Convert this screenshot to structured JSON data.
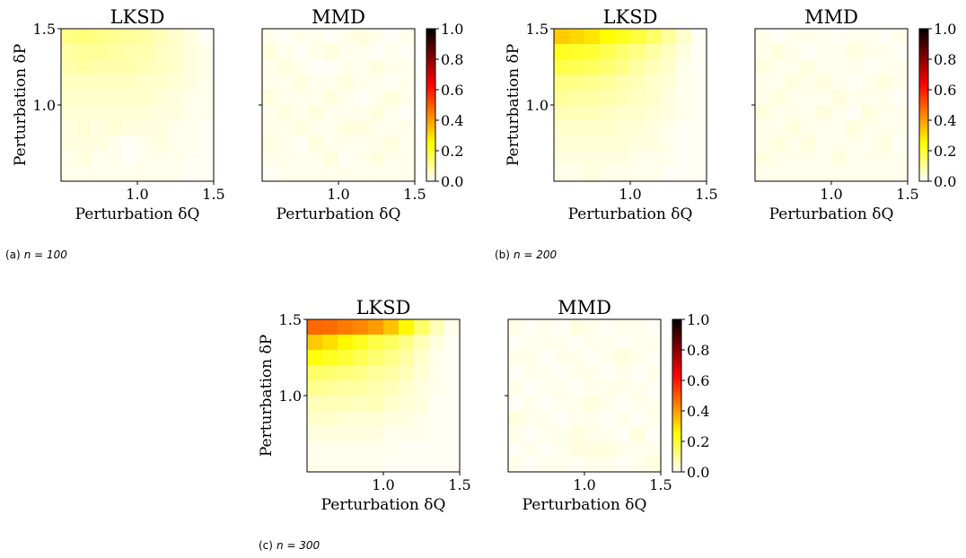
{
  "figure": {
    "captions": [
      {
        "label": "(a)",
        "n_value": "n = 100"
      },
      {
        "label": "(b)",
        "n_value": "n = 200"
      },
      {
        "label": "(c)",
        "n_value": "n = 300"
      }
    ],
    "axis_texts": {
      "xlabel": "Perturbation δQ",
      "ylabel": "Perturbation δP"
    }
  },
  "chart_data": [
    {
      "type": "heatmap",
      "title": "LKSD",
      "group": "(a)",
      "n": 100,
      "xlabel": "Perturbation δQ",
      "ylabel": "Perturbation δP",
      "xlim": [
        0.5,
        1.5
      ],
      "ylim": [
        0.5,
        1.5
      ],
      "xticks": [
        "1.0",
        "1.5"
      ],
      "yticks": [
        "1.0",
        "1.5"
      ],
      "colormap": "hot_r",
      "vmin": 0.0,
      "vmax": 1.0,
      "values": [
        [
          0.12,
          0.13,
          0.12,
          0.11,
          0.1,
          0.09,
          0.07,
          0.05,
          0.03,
          0.01
        ],
        [
          0.09,
          0.1,
          0.1,
          0.09,
          0.08,
          0.08,
          0.06,
          0.05,
          0.03,
          0.02
        ],
        [
          0.08,
          0.09,
          0.08,
          0.08,
          0.08,
          0.07,
          0.06,
          0.05,
          0.03,
          0.02
        ],
        [
          0.06,
          0.06,
          0.06,
          0.06,
          0.06,
          0.05,
          0.05,
          0.04,
          0.03,
          0.02
        ],
        [
          0.05,
          0.05,
          0.05,
          0.05,
          0.05,
          0.05,
          0.04,
          0.03,
          0.02,
          0.02
        ],
        [
          0.04,
          0.04,
          0.04,
          0.04,
          0.04,
          0.04,
          0.03,
          0.03,
          0.02,
          0.02
        ],
        [
          0.03,
          0.04,
          0.03,
          0.04,
          0.03,
          0.03,
          0.03,
          0.02,
          0.02,
          0.01
        ],
        [
          0.03,
          0.03,
          0.03,
          0.02,
          0.01,
          0.02,
          0.03,
          0.02,
          0.02,
          0.01
        ],
        [
          0.02,
          0.03,
          0.02,
          0.02,
          0.01,
          0.02,
          0.02,
          0.02,
          0.01,
          0.01
        ],
        [
          0.02,
          0.02,
          0.02,
          0.02,
          0.02,
          0.02,
          0.02,
          0.02,
          0.01,
          0.01
        ]
      ]
    },
    {
      "type": "heatmap",
      "title": "MMD",
      "group": "(a)",
      "n": 100,
      "xlabel": "Perturbation δQ",
      "ylabel": "",
      "xlim": [
        0.5,
        1.5
      ],
      "ylim": [
        0.5,
        1.5
      ],
      "xticks": [
        "1.0",
        "1.5"
      ],
      "yticks": [],
      "colormap": "hot_r",
      "vmin": 0.0,
      "vmax": 1.0,
      "colorbar_ticks": [
        "0.0",
        "0.2",
        "0.4",
        "0.6",
        "0.8",
        "1.0"
      ],
      "values": [
        [
          0.02,
          0.01,
          0.02,
          0.02,
          0.01,
          0.02,
          0.03,
          0.02,
          0.01,
          0.02
        ],
        [
          0.03,
          0.02,
          0.01,
          0.02,
          0.03,
          0.02,
          0.02,
          0.01,
          0.02,
          0.01
        ],
        [
          0.02,
          0.03,
          0.02,
          0.01,
          0.01,
          0.02,
          0.02,
          0.03,
          0.02,
          0.02
        ],
        [
          0.02,
          0.02,
          0.03,
          0.02,
          0.02,
          0.03,
          0.02,
          0.02,
          0.01,
          0.02
        ],
        [
          0.03,
          0.02,
          0.02,
          0.02,
          0.03,
          0.02,
          0.01,
          0.02,
          0.03,
          0.02
        ],
        [
          0.02,
          0.03,
          0.02,
          0.03,
          0.02,
          0.02,
          0.02,
          0.03,
          0.02,
          0.01
        ],
        [
          0.02,
          0.02,
          0.03,
          0.02,
          0.02,
          0.03,
          0.03,
          0.02,
          0.02,
          0.02
        ],
        [
          0.03,
          0.02,
          0.01,
          0.03,
          0.02,
          0.02,
          0.02,
          0.02,
          0.03,
          0.02
        ],
        [
          0.02,
          0.02,
          0.02,
          0.02,
          0.03,
          0.01,
          0.02,
          0.03,
          0.02,
          0.02
        ],
        [
          0.01,
          0.02,
          0.02,
          0.02,
          0.02,
          0.02,
          0.02,
          0.02,
          0.02,
          0.02
        ]
      ]
    },
    {
      "type": "heatmap",
      "title": "LKSD",
      "group": "(b)",
      "n": 200,
      "xlabel": "Perturbation δQ",
      "ylabel": "Perturbation δP",
      "xlim": [
        0.5,
        1.5
      ],
      "ylim": [
        0.5,
        1.5
      ],
      "xticks": [
        "1.0",
        "1.5"
      ],
      "yticks": [
        "1.0",
        "1.5"
      ],
      "colormap": "hot_r",
      "vmin": 0.0,
      "vmax": 1.0,
      "values": [
        [
          0.33,
          0.31,
          0.29,
          0.25,
          0.22,
          0.19,
          0.15,
          0.1,
          0.05,
          0.01
        ],
        [
          0.22,
          0.21,
          0.2,
          0.17,
          0.14,
          0.12,
          0.09,
          0.06,
          0.03,
          0.01
        ],
        [
          0.18,
          0.17,
          0.16,
          0.14,
          0.12,
          0.09,
          0.07,
          0.05,
          0.02,
          0.01
        ],
        [
          0.12,
          0.12,
          0.11,
          0.1,
          0.08,
          0.07,
          0.05,
          0.04,
          0.02,
          0.01
        ],
        [
          0.1,
          0.09,
          0.09,
          0.08,
          0.07,
          0.06,
          0.05,
          0.03,
          0.02,
          0.01
        ],
        [
          0.07,
          0.07,
          0.07,
          0.06,
          0.05,
          0.05,
          0.04,
          0.03,
          0.02,
          0.01
        ],
        [
          0.05,
          0.05,
          0.05,
          0.05,
          0.04,
          0.04,
          0.03,
          0.02,
          0.01,
          0.01
        ],
        [
          0.04,
          0.04,
          0.04,
          0.04,
          0.04,
          0.03,
          0.03,
          0.02,
          0.01,
          0.01
        ],
        [
          0.03,
          0.03,
          0.03,
          0.03,
          0.03,
          0.02,
          0.02,
          0.02,
          0.01,
          0.01
        ],
        [
          0.02,
          0.02,
          0.03,
          0.02,
          0.02,
          0.02,
          0.02,
          0.01,
          0.01,
          0.01
        ]
      ]
    },
    {
      "type": "heatmap",
      "title": "MMD",
      "group": "(b)",
      "n": 200,
      "xlabel": "Perturbation δQ",
      "ylabel": "",
      "xlim": [
        0.5,
        1.5
      ],
      "ylim": [
        0.5,
        1.5
      ],
      "xticks": [
        "1.0",
        "1.5"
      ],
      "yticks": [],
      "colormap": "hot_r",
      "vmin": 0.0,
      "vmax": 1.0,
      "colorbar_ticks": [
        "0.0",
        "0.2",
        "0.4",
        "0.6",
        "0.8",
        "1.0"
      ],
      "values": [
        [
          0.02,
          0.01,
          0.02,
          0.02,
          0.02,
          0.01,
          0.02,
          0.02,
          0.01,
          0.02
        ],
        [
          0.02,
          0.03,
          0.02,
          0.01,
          0.02,
          0.02,
          0.03,
          0.02,
          0.02,
          0.01
        ],
        [
          0.03,
          0.02,
          0.02,
          0.03,
          0.02,
          0.02,
          0.02,
          0.01,
          0.02,
          0.02
        ],
        [
          0.02,
          0.02,
          0.03,
          0.02,
          0.03,
          0.02,
          0.01,
          0.02,
          0.03,
          0.02
        ],
        [
          0.02,
          0.03,
          0.02,
          0.02,
          0.02,
          0.03,
          0.02,
          0.02,
          0.02,
          0.01
        ],
        [
          0.03,
          0.02,
          0.02,
          0.02,
          0.03,
          0.02,
          0.01,
          0.03,
          0.02,
          0.02
        ],
        [
          0.02,
          0.02,
          0.03,
          0.02,
          0.02,
          0.02,
          0.03,
          0.02,
          0.02,
          0.02
        ],
        [
          0.02,
          0.03,
          0.02,
          0.03,
          0.02,
          0.02,
          0.02,
          0.02,
          0.03,
          0.01
        ],
        [
          0.03,
          0.02,
          0.02,
          0.02,
          0.02,
          0.03,
          0.02,
          0.02,
          0.02,
          0.02
        ],
        [
          0.02,
          0.02,
          0.02,
          0.02,
          0.02,
          0.02,
          0.02,
          0.02,
          0.02,
          0.02
        ]
      ]
    },
    {
      "type": "heatmap",
      "title": "LKSD",
      "group": "(c)",
      "n": 300,
      "xlabel": "Perturbation δQ",
      "ylabel": "Perturbation δP",
      "xlim": [
        0.5,
        1.5
      ],
      "ylim": [
        0.5,
        1.5
      ],
      "xticks": [
        "1.0",
        "1.5"
      ],
      "yticks": [
        "1.0",
        "1.5"
      ],
      "colormap": "hot_r",
      "vmin": 0.0,
      "vmax": 1.0,
      "values": [
        [
          0.48,
          0.47,
          0.45,
          0.43,
          0.4,
          0.34,
          0.26,
          0.15,
          0.07,
          0.02
        ],
        [
          0.33,
          0.3,
          0.26,
          0.22,
          0.18,
          0.16,
          0.12,
          0.07,
          0.03,
          0.01
        ],
        [
          0.24,
          0.22,
          0.2,
          0.17,
          0.14,
          0.12,
          0.09,
          0.05,
          0.02,
          0.01
        ],
        [
          0.15,
          0.14,
          0.13,
          0.12,
          0.1,
          0.09,
          0.07,
          0.04,
          0.02,
          0.01
        ],
        [
          0.11,
          0.1,
          0.09,
          0.09,
          0.08,
          0.07,
          0.05,
          0.03,
          0.02,
          0.01
        ],
        [
          0.07,
          0.07,
          0.07,
          0.06,
          0.07,
          0.05,
          0.04,
          0.03,
          0.01,
          0.01
        ],
        [
          0.05,
          0.05,
          0.04,
          0.04,
          0.04,
          0.03,
          0.03,
          0.02,
          0.01,
          0.01
        ],
        [
          0.03,
          0.03,
          0.03,
          0.03,
          0.03,
          0.02,
          0.02,
          0.02,
          0.01,
          0.01
        ],
        [
          0.02,
          0.02,
          0.02,
          0.02,
          0.02,
          0.02,
          0.01,
          0.01,
          0.01,
          0.01
        ],
        [
          0.02,
          0.02,
          0.02,
          0.02,
          0.02,
          0.01,
          0.01,
          0.01,
          0.01,
          0.01
        ]
      ]
    },
    {
      "type": "heatmap",
      "title": "MMD",
      "group": "(c)",
      "n": 300,
      "xlabel": "Perturbation δQ",
      "ylabel": "",
      "xlim": [
        0.5,
        1.5
      ],
      "ylim": [
        0.5,
        1.5
      ],
      "xticks": [
        "1.0",
        "1.5"
      ],
      "yticks": [],
      "colormap": "hot_r",
      "vmin": 0.0,
      "vmax": 1.0,
      "colorbar_ticks": [
        "0.0",
        "0.2",
        "0.4",
        "0.6",
        "0.8",
        "1.0"
      ],
      "values": [
        [
          0.02,
          0.01,
          0.02,
          0.01,
          0.03,
          0.02,
          0.01,
          0.02,
          0.02,
          0.01
        ],
        [
          0.01,
          0.02,
          0.02,
          0.02,
          0.01,
          0.02,
          0.02,
          0.01,
          0.02,
          0.02
        ],
        [
          0.02,
          0.02,
          0.01,
          0.02,
          0.02,
          0.01,
          0.02,
          0.03,
          0.02,
          0.01
        ],
        [
          0.01,
          0.02,
          0.02,
          0.01,
          0.02,
          0.02,
          0.01,
          0.02,
          0.01,
          0.02
        ],
        [
          0.02,
          0.01,
          0.02,
          0.02,
          0.01,
          0.02,
          0.02,
          0.02,
          0.02,
          0.01
        ],
        [
          0.01,
          0.02,
          0.01,
          0.02,
          0.02,
          0.03,
          0.02,
          0.01,
          0.02,
          0.02
        ],
        [
          0.03,
          0.02,
          0.02,
          0.01,
          0.02,
          0.02,
          0.01,
          0.02,
          0.01,
          0.02
        ],
        [
          0.02,
          0.01,
          0.02,
          0.02,
          0.03,
          0.02,
          0.02,
          0.01,
          0.03,
          0.01
        ],
        [
          0.01,
          0.02,
          0.01,
          0.02,
          0.03,
          0.03,
          0.03,
          0.02,
          0.02,
          0.02
        ],
        [
          0.02,
          0.01,
          0.02,
          0.02,
          0.01,
          0.02,
          0.02,
          0.01,
          0.02,
          0.03
        ]
      ]
    }
  ]
}
